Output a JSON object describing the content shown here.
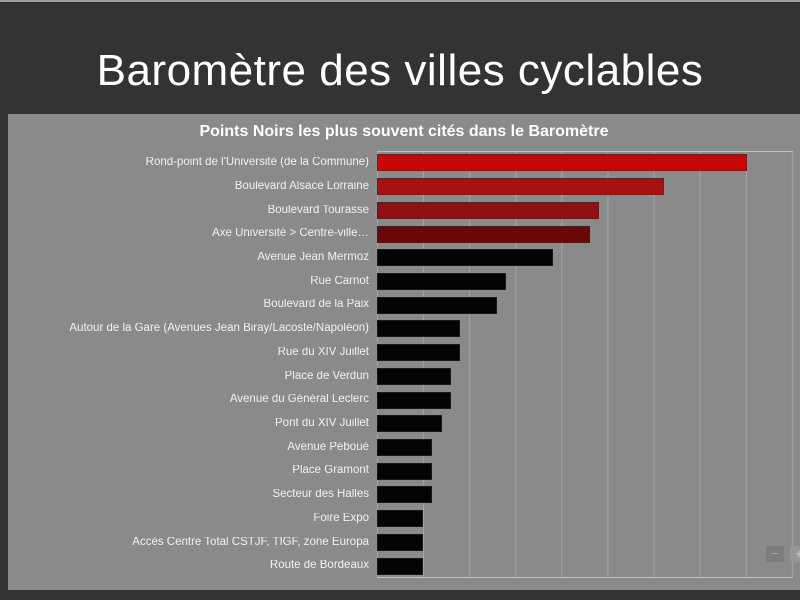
{
  "slide": {
    "title": "Baromètre des villes cyclables"
  },
  "chart_data": {
    "type": "bar",
    "orientation": "horizontal",
    "title": "Points Noirs les plus souvent cités dans le Baromètre",
    "categories": [
      "Rond-point de l'Université (de la Commune)",
      "Boulevard Alsace Lorraine",
      "Boulevard Tourasse",
      "Axe Université > Centre-ville…",
      "Avenue Jean Mermoz",
      "Rue Carnot",
      "Boulevard de la Paix",
      "Autour de la Gare (Avenues Jean Biray/Lacoste/Napoléon)",
      "Rue du XIV Juillet",
      "Place de Verdun",
      "Avenue du Général Leclerc",
      "Pont du XIV Juillet",
      "Avenue Péboué",
      "Place Gramont",
      "Secteur des Halles",
      "Foire Expo",
      "Accès Centre Total CSTJF, TIGF, zone Europa",
      "Route de Bordeaux"
    ],
    "values": [
      40,
      31,
      24,
      23,
      19,
      14,
      13,
      9,
      9,
      8,
      8,
      7,
      6,
      6,
      6,
      5,
      5,
      5
    ],
    "values_note": "estimated from gridlines; x axis has no numeric tick labels",
    "bar_colors": [
      "#c90606",
      "#a81111",
      "#8e1010",
      "#6a0808",
      "#030303",
      "#030303",
      "#030303",
      "#030303",
      "#030303",
      "#030303",
      "#030303",
      "#030303",
      "#030303",
      "#030303",
      "#030303",
      "#030303",
      "#030303",
      "#030303"
    ],
    "xlabel": "",
    "ylabel": "",
    "xlim": [
      0,
      45
    ],
    "gridline_interval": 5,
    "grid": "vertical",
    "legend": "none",
    "x_tick_labels_visible": false
  },
  "viewer_controls": {
    "zoom_out_label": "−",
    "zoom_in_label": "+"
  },
  "colors": {
    "background": "#333333",
    "panel": "#8a8a8a",
    "gridline": "#a4a4a4",
    "title_text": "#ffffff",
    "category_label_text": "#f2f2f2",
    "highlight_red": "#c90606",
    "bar_black": "#030303"
  }
}
